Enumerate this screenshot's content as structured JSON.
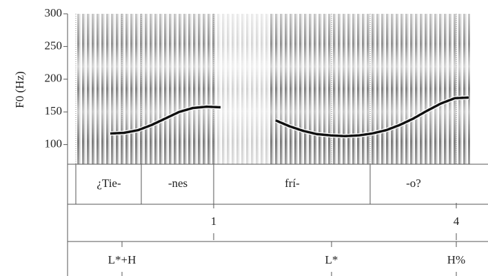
{
  "chart_data": {
    "type": "line",
    "y_label": "F0 (Hz)",
    "categories": [
      null,
      null,
      null,
      null,
      null,
      null,
      null,
      null,
      null,
      null,
      null,
      null,
      null,
      null,
      null,
      null,
      null,
      null,
      null,
      null,
      null,
      null,
      null,
      null,
      null,
      null,
      null,
      null,
      null,
      null,
      null
    ],
    "values": [
      null,
      null,
      null,
      117,
      118,
      122,
      130,
      140,
      150,
      156,
      158,
      157,
      null,
      null,
      null,
      137,
      128,
      121,
      116,
      114,
      113,
      114,
      117,
      122,
      130,
      140,
      152,
      163,
      171,
      172,
      null
    ],
    "color": "#111111",
    "ylim": [
      70,
      300
    ],
    "yticks": [
      100,
      150,
      200,
      250,
      300
    ],
    "tiers": [
      {
        "labels": [
          "¿Tie-",
          "-nes",
          "frí-",
          "-o?"
        ]
      },
      {
        "labels": [
          "1",
          "4"
        ]
      },
      {
        "labels": [
          "L*+H",
          "L*",
          "H%"
        ]
      }
    ]
  }
}
